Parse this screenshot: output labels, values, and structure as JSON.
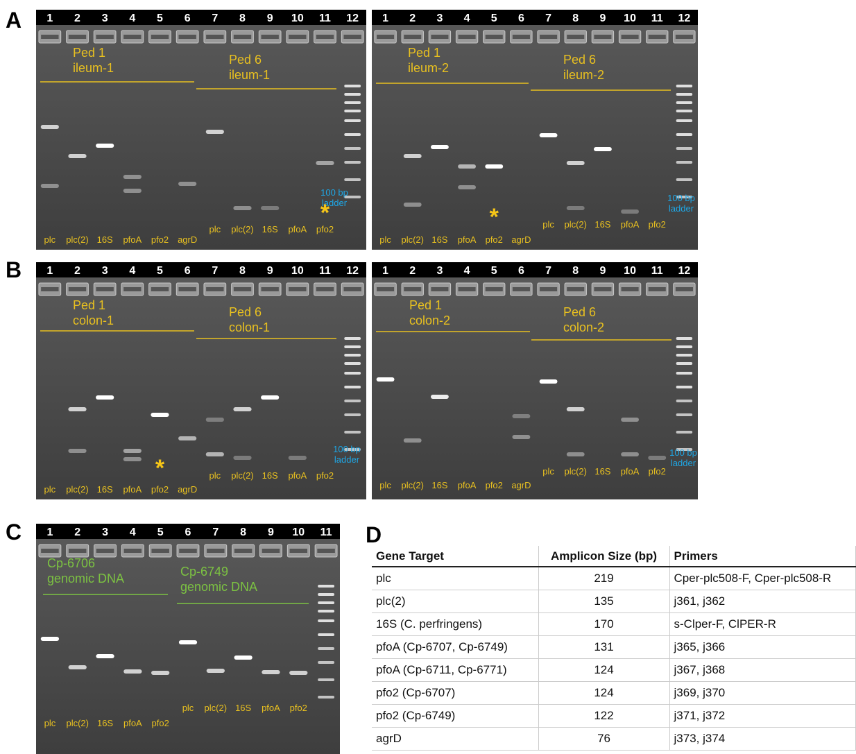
{
  "panel_letters": [
    "A",
    "B",
    "C",
    "D"
  ],
  "lane_numbers": [
    "1",
    "2",
    "3",
    "4",
    "5",
    "6",
    "7",
    "8",
    "9",
    "10",
    "11",
    "12"
  ],
  "lane_targets": [
    "plc",
    "plc(2)",
    "16S",
    "pfoA",
    "pfo2",
    "agrD"
  ],
  "ladder_label": [
    "100 bp",
    "ladder"
  ],
  "marker": "*",
  "gels": [
    {
      "groups": [
        [
          "Ped 1",
          "ileum-1"
        ],
        [
          "Ped 6",
          "ileum-1"
        ]
      ]
    },
    {
      "groups": [
        [
          "Ped 1",
          "ileum-2"
        ],
        [
          "Ped 6",
          "ileum-2"
        ]
      ]
    },
    {
      "groups": [
        [
          "Ped 1",
          "colon-1"
        ],
        [
          "Ped 6",
          "colon-1"
        ]
      ]
    },
    {
      "groups": [
        [
          "Ped 1",
          "colon-2"
        ],
        [
          "Ped 6",
          "colon-2"
        ]
      ]
    },
    {
      "groups": [
        [
          "Cp-6706",
          "genomic DNA"
        ],
        [
          "Cp-6749",
          "genomic DNA"
        ]
      ]
    }
  ],
  "table": {
    "header": [
      "Gene Target",
      "Amplicon Size (bp)",
      "Primers"
    ],
    "rows": [
      [
        "plc",
        219,
        "Cper-plc508-F, Cper-plc508-R"
      ],
      [
        "plc(2)",
        135,
        "j361, j362"
      ],
      [
        "16S (C. perfringens)",
        170,
        "s-Clper-F, ClPER-R"
      ],
      [
        "pfoA (Cp-6707, Cp-6749)",
        131,
        "j365, j366"
      ],
      [
        "pfoA (Cp-6711, Cp-6771)",
        124,
        "j367, j368"
      ],
      [
        "pfo2 (Cp-6707)",
        124,
        "j369, j370"
      ],
      [
        "pfo2 (Cp-6749)",
        122,
        "j371, j372"
      ],
      [
        "agrD",
        76,
        "j373, j374"
      ]
    ]
  }
}
